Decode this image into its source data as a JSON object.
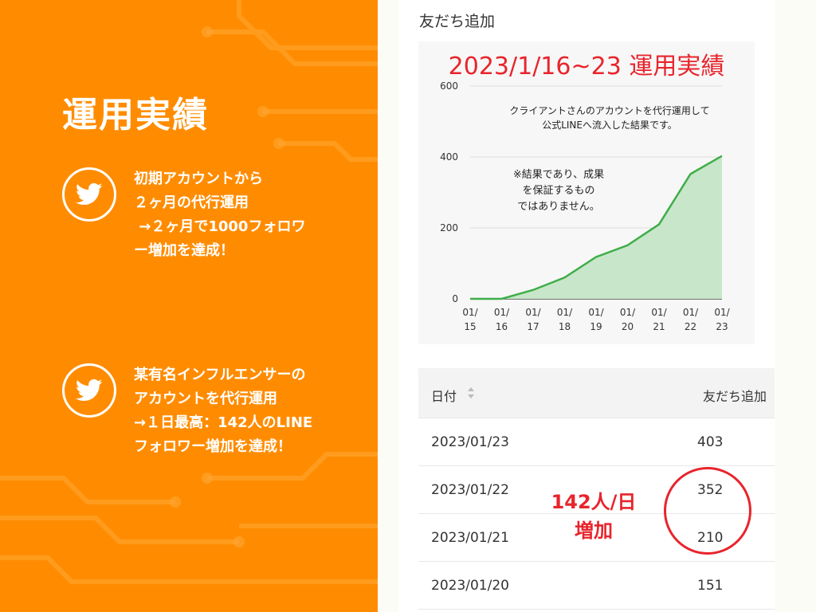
{
  "left": {
    "title": "運用実績",
    "block1": "初期アカウントから\n２ヶ月の代行運用\n →２ヶ月で1000フォロワ\nー増加を達成！",
    "block2": "某有名インフルエンサーの\nアカウントを代行運用\n→１日最高：142人のLINE\nフォロワー増加を達成！",
    "icons": [
      "twitter-bird-icon",
      "twitter-bird-icon"
    ]
  },
  "screenshot": {
    "title": "友だち追加",
    "chart_heading": "2023/1/16~23 運用実績",
    "note_client": "クライアントさんのアカウントを代行運用して\n公式LINEへ流入した結果です。",
    "note_disclaimer": "※結果であり、成果\nを保証するもの\nではありません。",
    "table": {
      "headers": [
        "日付",
        "友だち追加"
      ],
      "rows": [
        {
          "date": "2023/01/23",
          "value": "403"
        },
        {
          "date": "2023/01/22",
          "value": "352"
        },
        {
          "date": "2023/01/21",
          "value": "210"
        },
        {
          "date": "2023/01/20",
          "value": "151"
        }
      ]
    },
    "annotation": [
      "142人/日",
      "増加"
    ]
  },
  "colors": {
    "orange": "#ff8c00",
    "red": "#e8242c",
    "green_line": "#3fae49",
    "green_fill": "#c8e6c9"
  },
  "chart_data": {
    "type": "area",
    "categories": [
      "01/15",
      "01/16",
      "01/17",
      "01/18",
      "01/19",
      "01/20",
      "01/21",
      "01/22",
      "01/23"
    ],
    "tick_top": [
      "01/",
      "01/",
      "01/",
      "01/",
      "01/",
      "01/",
      "01/",
      "01/",
      "01/"
    ],
    "tick_bottom": [
      "15",
      "16",
      "17",
      "18",
      "19",
      "20",
      "21",
      "22",
      "23"
    ],
    "series": [
      {
        "values": [
          0,
          0,
          25,
          60,
          118,
          151,
          210,
          352,
          403
        ]
      }
    ],
    "yticks": [
      "0",
      "200",
      "400",
      "600"
    ],
    "ylim": [
      0,
      600
    ],
    "grid": true
  }
}
